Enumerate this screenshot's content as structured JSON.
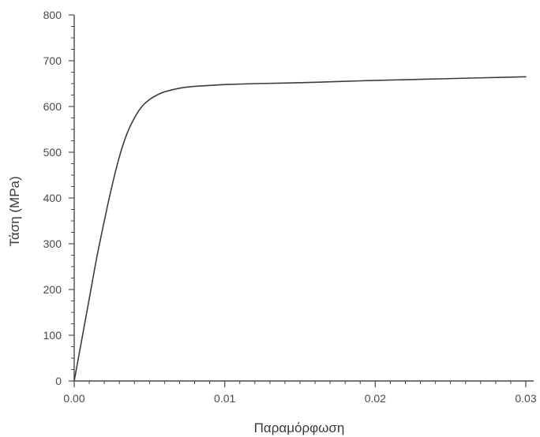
{
  "chart_data": {
    "type": "line",
    "title": "",
    "xlabel": "Παραμόρφωση",
    "ylabel": "Τάση (MPa)",
    "xlim": [
      0,
      0.03
    ],
    "ylim": [
      0,
      800
    ],
    "x_ticks": [
      0,
      0.01,
      0.02,
      0.03
    ],
    "x_tick_labels": [
      "0.00",
      "0.01",
      "0.02",
      "0.03"
    ],
    "y_ticks": [
      0,
      100,
      200,
      300,
      400,
      500,
      600,
      700,
      800
    ],
    "y_tick_labels": [
      "0",
      "100",
      "200",
      "300",
      "400",
      "500",
      "600",
      "700",
      "800"
    ],
    "grid": false,
    "legend": "none",
    "colors": {
      "line": "#3c3c3c",
      "axis": "#4a4a4a"
    },
    "series": [
      {
        "x": [
          0,
          0.0005,
          0.001,
          0.0015,
          0.002,
          0.0025,
          0.003,
          0.0035,
          0.004,
          0.0045,
          0.005,
          0.0055,
          0.006,
          0.007,
          0.008,
          0.009,
          0.01,
          0.012,
          0.015,
          0.018,
          0.02,
          0.025,
          0.03
        ],
        "y": [
          0,
          90,
          180,
          270,
          350,
          425,
          490,
          540,
          575,
          600,
          615,
          625,
          632,
          640,
          644,
          646,
          648,
          650,
          652,
          655,
          657,
          661,
          665
        ]
      }
    ]
  }
}
